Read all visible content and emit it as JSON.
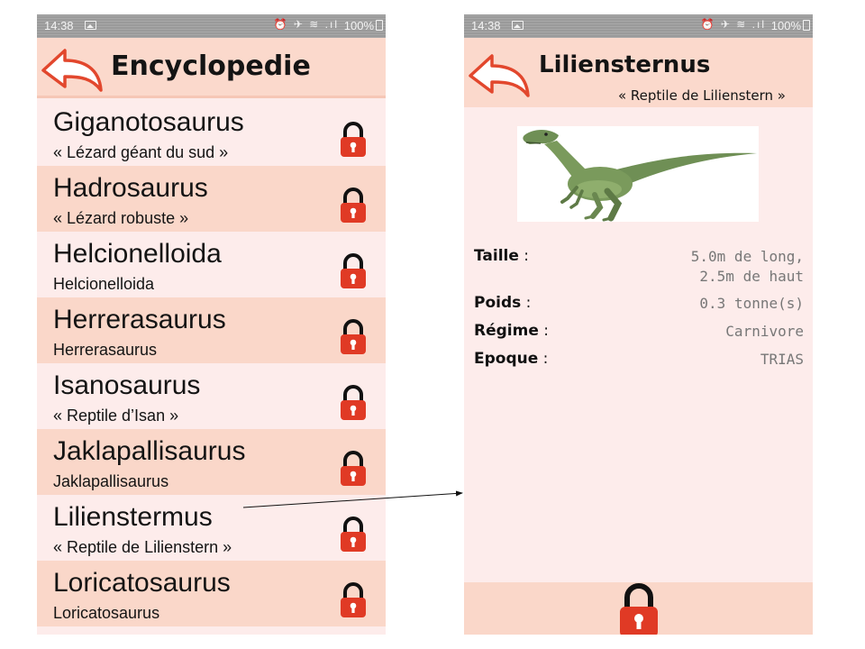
{
  "left_screen": {
    "status": {
      "time": "14:38",
      "icons": "⏰ ✈ ≋ .ıl",
      "battery": "100%"
    },
    "header": {
      "title": "Encyclopedie",
      "back_icon": "back-arrow-icon"
    },
    "items": [
      {
        "name": "Giganotosaurus",
        "subtitle": "« Lézard géant du sud »",
        "locked": true
      },
      {
        "name": "Hadrosaurus",
        "subtitle": "« Lézard robuste »",
        "locked": true
      },
      {
        "name": "Helcionelloida",
        "subtitle": "Helcionelloida",
        "locked": true
      },
      {
        "name": "Herrerasaurus",
        "subtitle": "Herrerasaurus",
        "locked": true
      },
      {
        "name": "Isanosaurus",
        "subtitle": "« Reptile d’Isan »",
        "locked": true
      },
      {
        "name": "Jaklapallisaurus",
        "subtitle": "Jaklapallisaurus",
        "locked": true
      },
      {
        "name": "Lilienstermus",
        "subtitle": "« Reptile de Lilienstern »",
        "locked": true
      },
      {
        "name": "Loricatosaurus",
        "subtitle": "Loricatosaurus",
        "locked": true
      }
    ]
  },
  "right_screen": {
    "status": {
      "time": "14:38",
      "icons": "⏰ ✈ ≋ .ıl",
      "battery": "100%"
    },
    "header": {
      "title": "Liliensternus",
      "subtitle": "« Reptile de Lilienstern »",
      "back_icon": "back-arrow-icon"
    },
    "image": {
      "alt": "dinosaur-illustration"
    },
    "facts": [
      {
        "label": "Taille",
        "colon": " :",
        "value_line1": "5.0m de long,",
        "value_line2": "2.5m de haut"
      },
      {
        "label": "Poids",
        "colon": " :",
        "value_line1": "0.3 tonne(s)"
      },
      {
        "label": "Régime",
        "colon": " :",
        "value_line1": "Carnivore"
      },
      {
        "label": "Epoque",
        "colon": " :",
        "value_line1": "TRIAS"
      }
    ],
    "footer": {
      "lock_icon": "padlock-icon"
    }
  },
  "colors": {
    "accent_red": "#e2472d",
    "lock_red": "#e03a25",
    "row_light": "#fdeceb",
    "row_dark": "#fad7c9",
    "header_bg": "#fbd9cc",
    "statusbar": "#9a9a9a",
    "value_gray": "#777777"
  }
}
